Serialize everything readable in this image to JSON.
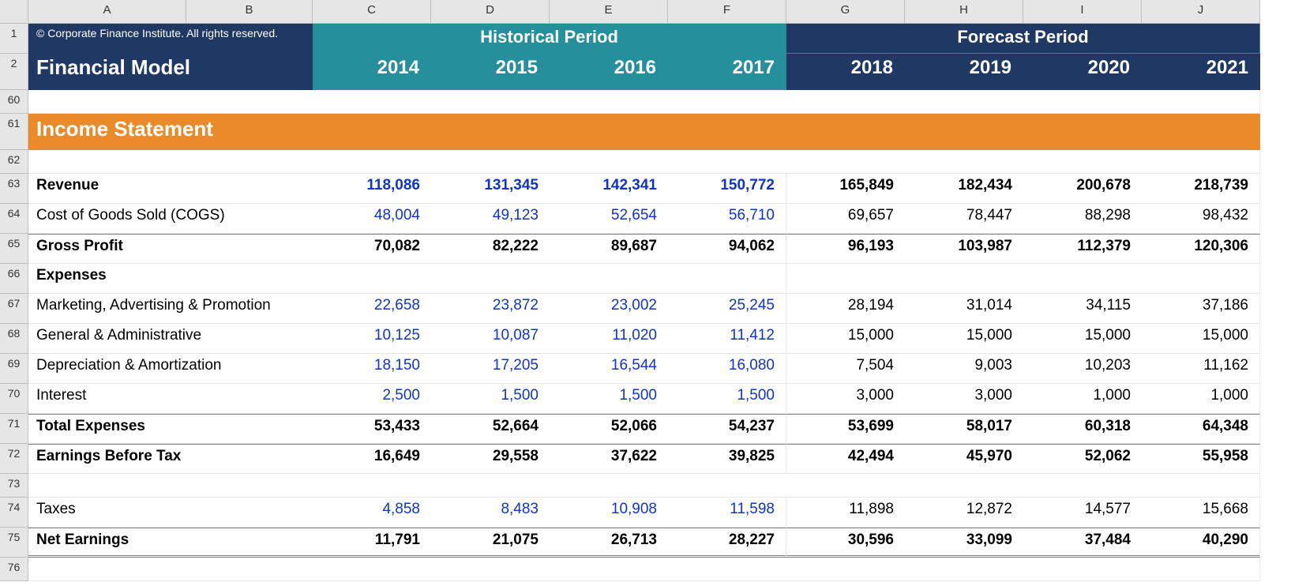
{
  "columns": [
    "A",
    "B",
    "C",
    "D",
    "E",
    "F",
    "G",
    "H",
    "I",
    "J"
  ],
  "row_numbers": [
    "1",
    "2",
    "60",
    "61",
    "62",
    "63",
    "64",
    "65",
    "66",
    "67",
    "68",
    "69",
    "70",
    "71",
    "72",
    "73",
    "74",
    "75",
    "76"
  ],
  "header": {
    "copyright": "© Corporate Finance Institute. All rights reserved.",
    "title": "Financial Model",
    "period_historical": "Historical Period",
    "period_forecast": "Forecast Period",
    "years_historical": [
      "2014",
      "2015",
      "2016",
      "2017"
    ],
    "years_forecast": [
      "2018",
      "2019",
      "2020",
      "2021"
    ]
  },
  "section_title": "Income Statement",
  "rows": {
    "revenue": {
      "label": "Revenue",
      "hist": [
        "118,086",
        "131,345",
        "142,341",
        "150,772"
      ],
      "fcst": [
        "165,849",
        "182,434",
        "200,678",
        "218,739"
      ]
    },
    "cogs": {
      "label": "Cost of Goods Sold (COGS)",
      "hist": [
        "48,004",
        "49,123",
        "52,654",
        "56,710"
      ],
      "fcst": [
        "69,657",
        "78,447",
        "88,298",
        "98,432"
      ]
    },
    "gross_profit": {
      "label": "Gross Profit",
      "hist": [
        "70,082",
        "82,222",
        "89,687",
        "94,062"
      ],
      "fcst": [
        "96,193",
        "103,987",
        "112,379",
        "120,306"
      ]
    },
    "expenses_label": "Expenses",
    "marketing": {
      "label": "Marketing, Advertising & Promotion",
      "hist": [
        "22,658",
        "23,872",
        "23,002",
        "25,245"
      ],
      "fcst": [
        "28,194",
        "31,014",
        "34,115",
        "37,186"
      ]
    },
    "ga": {
      "label": "General & Administrative",
      "hist": [
        "10,125",
        "10,087",
        "11,020",
        "11,412"
      ],
      "fcst": [
        "15,000",
        "15,000",
        "15,000",
        "15,000"
      ]
    },
    "da": {
      "label": "Depreciation & Amortization",
      "hist": [
        "18,150",
        "17,205",
        "16,544",
        "16,080"
      ],
      "fcst": [
        "7,504",
        "9,003",
        "10,203",
        "11,162"
      ]
    },
    "interest": {
      "label": "Interest",
      "hist": [
        "2,500",
        "1,500",
        "1,500",
        "1,500"
      ],
      "fcst": [
        "3,000",
        "3,000",
        "1,000",
        "1,000"
      ]
    },
    "total_expenses": {
      "label": "Total Expenses",
      "hist": [
        "53,433",
        "52,664",
        "52,066",
        "54,237"
      ],
      "fcst": [
        "53,699",
        "58,017",
        "60,318",
        "64,348"
      ]
    },
    "ebt": {
      "label": "Earnings Before Tax",
      "hist": [
        "16,649",
        "29,558",
        "37,622",
        "39,825"
      ],
      "fcst": [
        "42,494",
        "45,970",
        "52,062",
        "55,958"
      ]
    },
    "taxes": {
      "label": "Taxes",
      "hist": [
        "4,858",
        "8,483",
        "10,908",
        "11,598"
      ],
      "fcst": [
        "11,898",
        "12,872",
        "14,577",
        "15,668"
      ]
    },
    "net_earnings": {
      "label": "Net Earnings",
      "hist": [
        "11,791",
        "21,075",
        "26,713",
        "28,227"
      ],
      "fcst": [
        "30,596",
        "33,099",
        "37,484",
        "40,290"
      ]
    }
  },
  "colors": {
    "navy": "#1f3864",
    "teal": "#258f9c",
    "orange": "#e98b2a",
    "grid_header": "#e6e6e6",
    "blue_text": "#1034c8"
  }
}
